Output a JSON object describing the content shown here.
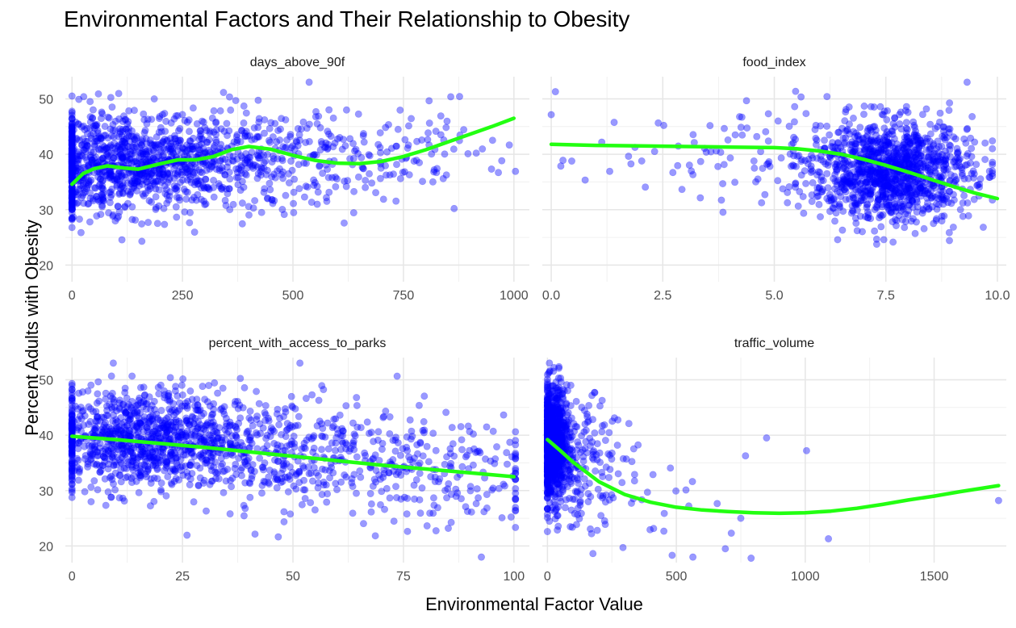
{
  "chart_data": {
    "type": "scatter",
    "title": "Environmental Factors and Their Relationship to Obesity",
    "xlabel": "Environmental Factor Value",
    "ylabel": "Percent Adults with Obesity",
    "point_color": "#0000ff",
    "smooth_color": "#22ff11",
    "grid": true,
    "ylim": [
      17,
      54
    ],
    "y_ticks": [
      20,
      30,
      40,
      50
    ],
    "facets": [
      {
        "name": "days_above_90f",
        "xlim": [
          -15,
          1035
        ],
        "x_ticks": [
          0,
          250,
          500,
          750,
          1000
        ],
        "smooth": [
          [
            0,
            34.6
          ],
          [
            25,
            36.5
          ],
          [
            50,
            37.4
          ],
          [
            80,
            37.9
          ],
          [
            120,
            37.5
          ],
          [
            150,
            37.3
          ],
          [
            200,
            38.3
          ],
          [
            240,
            39.0
          ],
          [
            280,
            39.0
          ],
          [
            320,
            39.6
          ],
          [
            360,
            40.8
          ],
          [
            400,
            41.4
          ],
          [
            450,
            40.9
          ],
          [
            500,
            39.8
          ],
          [
            550,
            38.9
          ],
          [
            600,
            38.4
          ],
          [
            650,
            38.3
          ],
          [
            700,
            38.7
          ],
          [
            750,
            39.6
          ],
          [
            800,
            40.8
          ],
          [
            850,
            42.2
          ],
          [
            900,
            43.6
          ],
          [
            950,
            45.0
          ],
          [
            1000,
            46.5
          ]
        ],
        "clusters": [
          {
            "x": [
              0,
              60
            ],
            "y": [
              37.5,
              4.5
            ],
            "n": 320
          },
          {
            "x": [
              150,
              110
            ],
            "y": [
              38.5,
              4.2
            ],
            "n": 700
          },
          {
            "x": [
              380,
              130
            ],
            "y": [
              38.5,
              4.5
            ],
            "n": 350
          },
          {
            "x": [
              650,
              90
            ],
            "y": [
              38.5,
              4.0
            ],
            "n": 90
          },
          {
            "x": [
              850,
              90
            ],
            "y": [
              42.0,
              3.5
            ],
            "n": 40
          }
        ]
      },
      {
        "name": "food_index",
        "xlim": [
          -0.2,
          10.2
        ],
        "x_ticks": [
          0.0,
          2.5,
          5.0,
          7.5,
          10.0
        ],
        "smooth": [
          [
            0,
            41.8
          ],
          [
            1,
            41.6
          ],
          [
            2,
            41.5
          ],
          [
            3,
            41.4
          ],
          [
            4,
            41.3
          ],
          [
            5,
            41.2
          ],
          [
            5.5,
            41.0
          ],
          [
            6,
            40.6
          ],
          [
            6.5,
            40.0
          ],
          [
            7,
            39.1
          ],
          [
            7.5,
            38.0
          ],
          [
            8,
            36.8
          ],
          [
            8.5,
            35.5
          ],
          [
            9,
            34.2
          ],
          [
            9.5,
            33.0
          ],
          [
            10,
            32.0
          ]
        ],
        "clusters": [
          {
            "x": [
              7.6,
              0.9
            ],
            "y": [
              37.0,
              4.5
            ],
            "n": 1200
          },
          {
            "x": [
              4.5,
              1.2
            ],
            "y": [
              40.0,
              5.0
            ],
            "n": 80
          },
          {
            "x": [
              1.5,
              1.2
            ],
            "y": [
              41.0,
              4.5
            ],
            "n": 12
          }
        ]
      },
      {
        "name": "percent_with_access_to_parks",
        "xlim": [
          -1.5,
          103.5
        ],
        "x_ticks": [
          0,
          25,
          50,
          75,
          100
        ],
        "smooth": [
          [
            0,
            39.8
          ],
          [
            10,
            39.2
          ],
          [
            20,
            38.5
          ],
          [
            30,
            37.8
          ],
          [
            40,
            37.0
          ],
          [
            50,
            36.2
          ],
          [
            60,
            35.4
          ],
          [
            70,
            34.6
          ],
          [
            80,
            33.9
          ],
          [
            90,
            33.2
          ],
          [
            100,
            32.5
          ]
        ],
        "clusters": [
          {
            "x": [
              15,
              12
            ],
            "y": [
              39.5,
              4.5
            ],
            "n": 900
          },
          {
            "x": [
              45,
              18
            ],
            "y": [
              37.0,
              5.0
            ],
            "n": 500
          },
          {
            "x": [
              85,
              12
            ],
            "y": [
              33.5,
              5.5
            ],
            "n": 160
          }
        ]
      },
      {
        "name": "traffic_volume",
        "xlim": [
          -20,
          1780
        ],
        "x_ticks": [
          0,
          500,
          1000,
          1500
        ],
        "smooth": [
          [
            0,
            39.2
          ],
          [
            50,
            37.2
          ],
          [
            100,
            35.1
          ],
          [
            200,
            31.6
          ],
          [
            300,
            29.3
          ],
          [
            400,
            27.9
          ],
          [
            500,
            27.0
          ],
          [
            600,
            26.5
          ],
          [
            700,
            26.2
          ],
          [
            800,
            26.0
          ],
          [
            900,
            25.9
          ],
          [
            1000,
            26.0
          ],
          [
            1100,
            26.3
          ],
          [
            1200,
            26.8
          ],
          [
            1300,
            27.5
          ],
          [
            1400,
            28.3
          ],
          [
            1500,
            29.0
          ],
          [
            1600,
            29.8
          ],
          [
            1750,
            30.9
          ]
        ],
        "clusters": [
          {
            "x": [
              20,
              30
            ],
            "y": [
              38.5,
              5.0
            ],
            "n": 900
          },
          {
            "x": [
              120,
              90
            ],
            "y": [
              35.5,
              5.5
            ],
            "n": 220
          },
          {
            "x": [
              450,
              180
            ],
            "y": [
              27.0,
              5.0
            ],
            "n": 25
          }
        ],
        "points": [
          [
            850,
            39.5
          ],
          [
            1005,
            37.2
          ],
          [
            1090,
            21.3
          ],
          [
            1750,
            28.2
          ],
          [
            790,
            17.8
          ],
          [
            690,
            19.5
          ],
          [
            750,
            25.0
          ]
        ]
      }
    ]
  }
}
